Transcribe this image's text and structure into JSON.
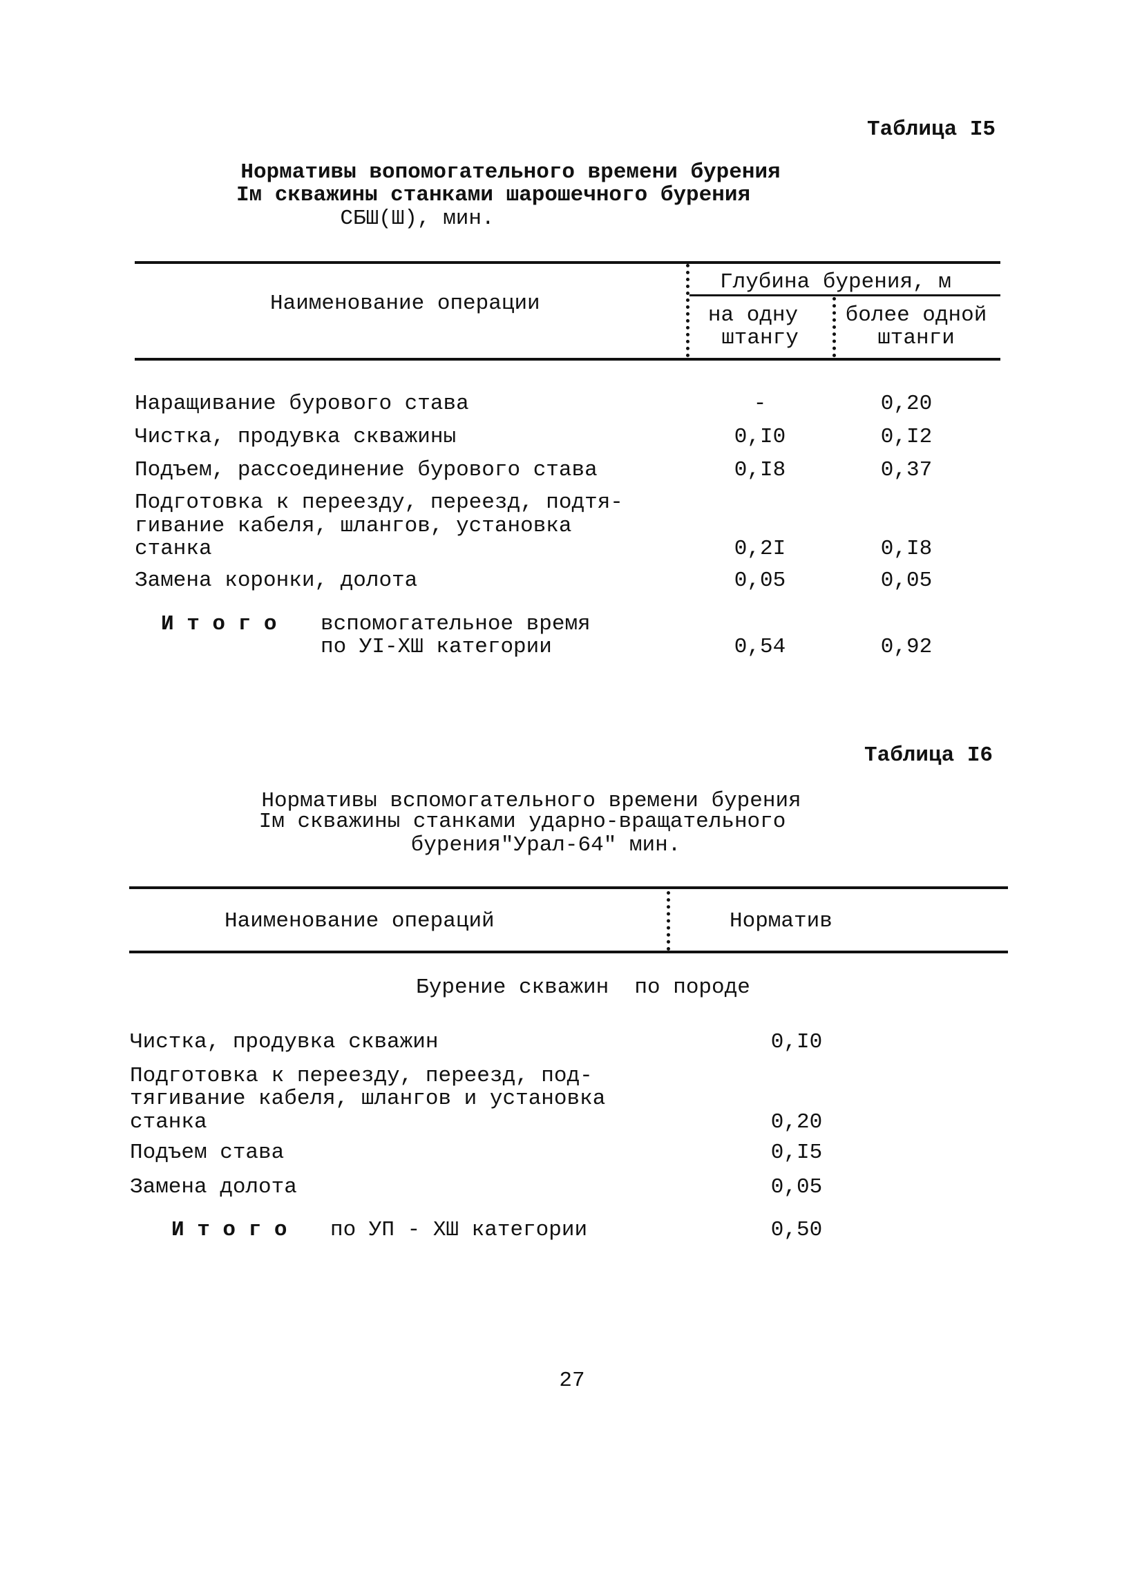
{
  "table15": {
    "label": "Таблица I5",
    "title": [
      "Нормативы вопомогательного времени бурения",
      "Iм скважины станками шарошечного бурения",
      "СБШ(Ш), мин."
    ],
    "header": {
      "operation": "Наименование операции",
      "group": "Глубина бурения, м",
      "col1": [
        "на одну",
        "штангу"
      ],
      "col2": [
        "более одной",
        "штанги"
      ]
    },
    "rows": [
      {
        "name": [
          "Наращивание бурового става"
        ],
        "v1": "-",
        "v2": "0,20"
      },
      {
        "name": [
          "Чистка, продувка скважины"
        ],
        "v1": "0,I0",
        "v2": "0,I2"
      },
      {
        "name": [
          "Подъем, рассоединение бурового става"
        ],
        "v1": "0,I8",
        "v2": "0,37"
      },
      {
        "name": [
          "Подготовка к переезду, переезд, подтя-",
          "гивание кабеля, шлангов, установка",
          "станка"
        ],
        "v1": "0,2I",
        "v2": "0,I8"
      },
      {
        "name": [
          "Замена коронки, долота"
        ],
        "v1": "0,05",
        "v2": "0,05"
      }
    ],
    "total": {
      "label": "И т о г о",
      "text": [
        "вспомогательное время",
        "по УI-ХШ категории"
      ],
      "v1": "0,54",
      "v2": "0,92"
    }
  },
  "table16": {
    "label": "Таблица I6",
    "title": [
      "Нормативы вспомогательного времени бурения",
      "Iм скважины станками ударно-вращательного",
      "бурения\"Урал-64\" мин."
    ],
    "header": {
      "operation": "Наименование операций",
      "norm": "Норматив"
    },
    "section": "Бурение скважин  по породе",
    "rows": [
      {
        "name": [
          "Чистка, продувка скважин"
        ],
        "v": "0,I0"
      },
      {
        "name": [
          "Подготовка к переезду, переезд, под-",
          "тягивание кабеля, шлангов и установка",
          "станка"
        ],
        "v": "0,20"
      },
      {
        "name": [
          "Подъем става"
        ],
        "v": "0,I5"
      },
      {
        "name": [
          "Замена долота"
        ],
        "v": "0,05"
      }
    ],
    "total": {
      "label": "И т о г о",
      "text": "по УП - ХШ категории",
      "v": "0,50"
    }
  },
  "page_number": "27"
}
